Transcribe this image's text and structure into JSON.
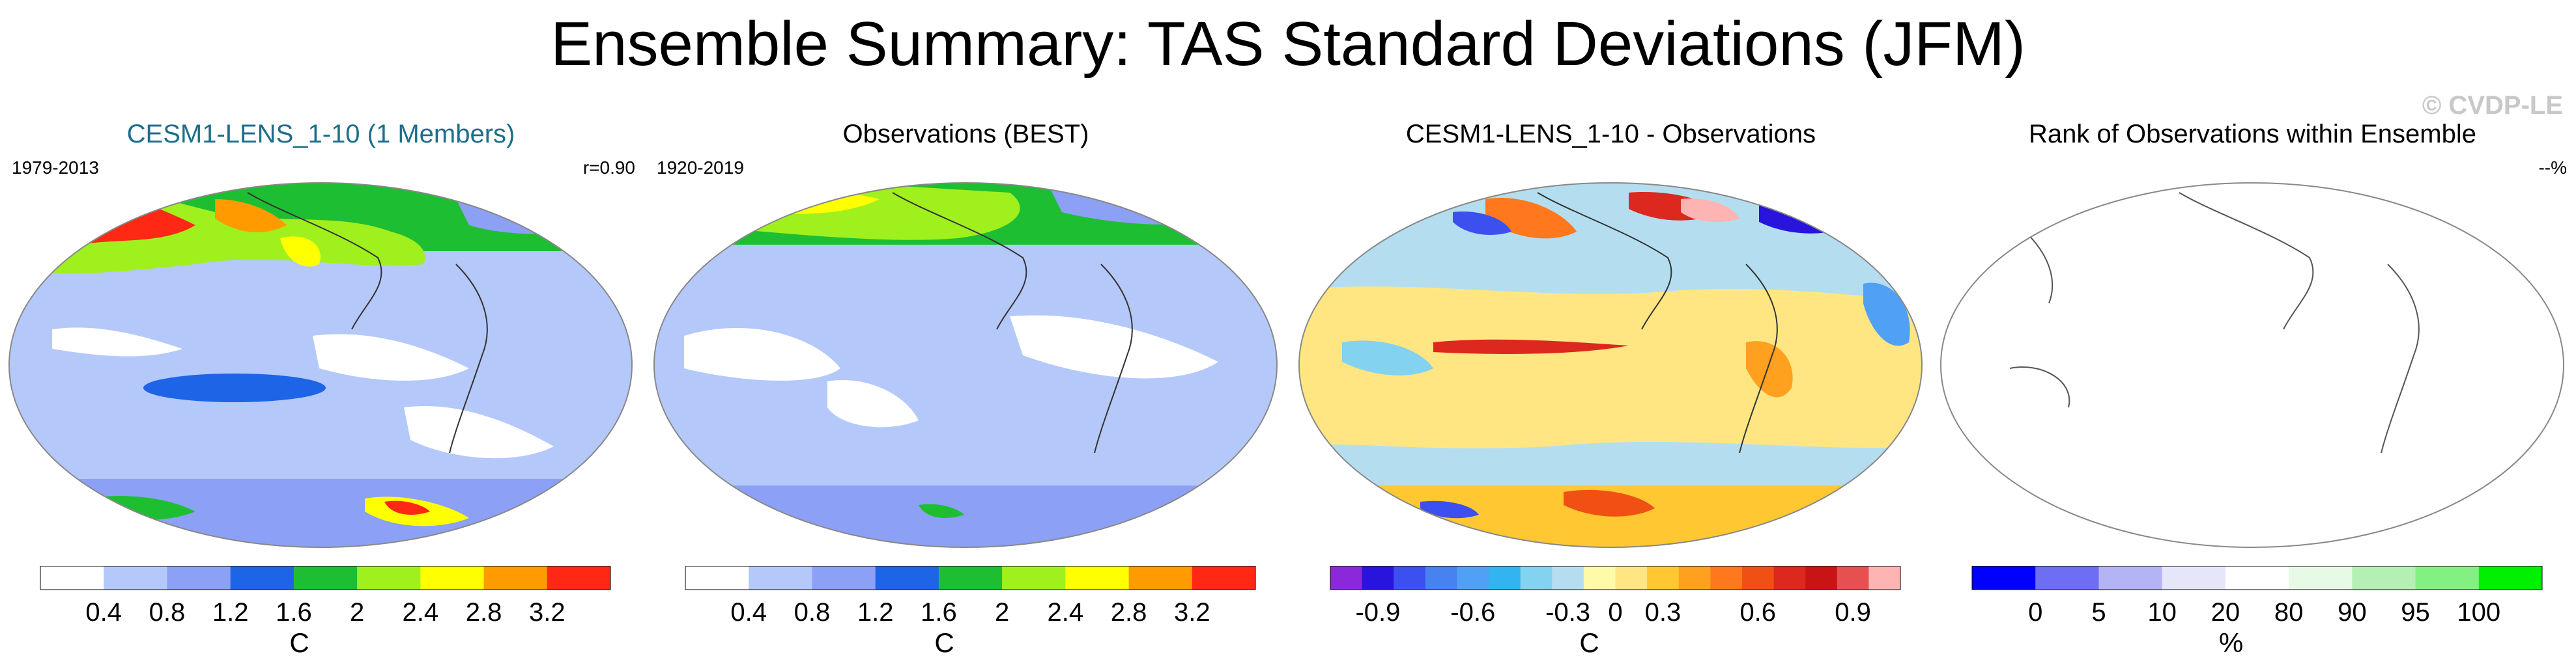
{
  "title": "Ensemble Summary: TAS Standard Deviations (JFM)",
  "watermark": "© CVDP-LE",
  "panels": [
    {
      "title": "CESM1-LENS_1-10 (1 Members)",
      "left_label": "1979-2013",
      "right_label": "r=0.90",
      "colorbar": {
        "colors": [
          "#ffffff",
          "#b4c8fa",
          "#8ca0f5",
          "#1e64e6",
          "#1ebe32",
          "#a0f01e",
          "#ffff00",
          "#ff9b00",
          "#ff2814"
        ],
        "labels": [
          "0.4",
          "0.8",
          "1.2",
          "1.6",
          "2",
          "2.4",
          "2.8",
          "3.2"
        ],
        "unit": "C"
      }
    },
    {
      "title": "Observations (BEST)",
      "left_label": "1920-2019",
      "right_label": "",
      "colorbar": {
        "colors": [
          "#ffffff",
          "#b4c8fa",
          "#8ca0f5",
          "#1e64e6",
          "#1ebe32",
          "#a0f01e",
          "#ffff00",
          "#ff9b00",
          "#ff2814"
        ],
        "labels": [
          "0.4",
          "0.8",
          "1.2",
          "1.6",
          "2",
          "2.4",
          "2.8",
          "3.2"
        ],
        "unit": "C"
      }
    },
    {
      "title": "CESM1-LENS_1-10 - Observations",
      "left_label": "",
      "right_label": "",
      "colorbar": {
        "colors": [
          "#8c28dc",
          "#2814dc",
          "#3c50f0",
          "#4682f0",
          "#50a0f5",
          "#32b4f0",
          "#82d2f0",
          "#b4def0",
          "#fffaaa",
          "#ffe682",
          "#ffc832",
          "#ffa01e",
          "#ff781e",
          "#f05014",
          "#dc281e",
          "#c81414",
          "#e65050",
          "#ffb4b4"
        ],
        "labels": [
          "-0.9",
          "-0.6",
          "-0.3",
          "0",
          "0.3",
          "0.6",
          "0.9"
        ],
        "label_slots": [
          1.5,
          4.5,
          7.5,
          9,
          10.5,
          13.5,
          16.5
        ],
        "unit": "C"
      }
    },
    {
      "title": "Rank of Observations within Ensemble",
      "left_label": "",
      "right_label": "--%",
      "colorbar": {
        "colors": [
          "#0000ff",
          "#6e6ef5",
          "#b4b4f5",
          "#e6e6fa",
          "#ffffff",
          "#e6fae6",
          "#b4f0b4",
          "#82f082",
          "#00f000"
        ],
        "labels": [
          "0",
          "5",
          "10",
          "20",
          "80",
          "90",
          "95",
          "100"
        ],
        "unit": "%"
      }
    }
  ],
  "chart_data": [
    {
      "type": "heatmap",
      "title": "CESM1-LENS_1-10 (1 Members)",
      "period": "1979-2013",
      "pattern_correlation": 0.9,
      "variable": "TAS standard deviation (JFM)",
      "units": "C",
      "levels": [
        0.4,
        0.8,
        1.2,
        1.6,
        2,
        2.4,
        2.8,
        3.2
      ]
    },
    {
      "type": "heatmap",
      "title": "Observations (BEST)",
      "period": "1920-2019",
      "variable": "TAS standard deviation (JFM)",
      "units": "C",
      "levels": [
        0.4,
        0.8,
        1.2,
        1.6,
        2,
        2.4,
        2.8,
        3.2
      ]
    },
    {
      "type": "heatmap",
      "title": "CESM1-LENS_1-10 - Observations",
      "variable": "TAS standard deviation difference (JFM)",
      "units": "C",
      "levels": [
        -0.9,
        -0.6,
        -0.3,
        0,
        0.3,
        0.6,
        0.9
      ]
    },
    {
      "type": "heatmap",
      "title": "Rank of Observations within Ensemble",
      "summary": "--%",
      "units": "%",
      "levels": [
        0,
        5,
        10,
        20,
        80,
        90,
        95,
        100
      ]
    }
  ]
}
